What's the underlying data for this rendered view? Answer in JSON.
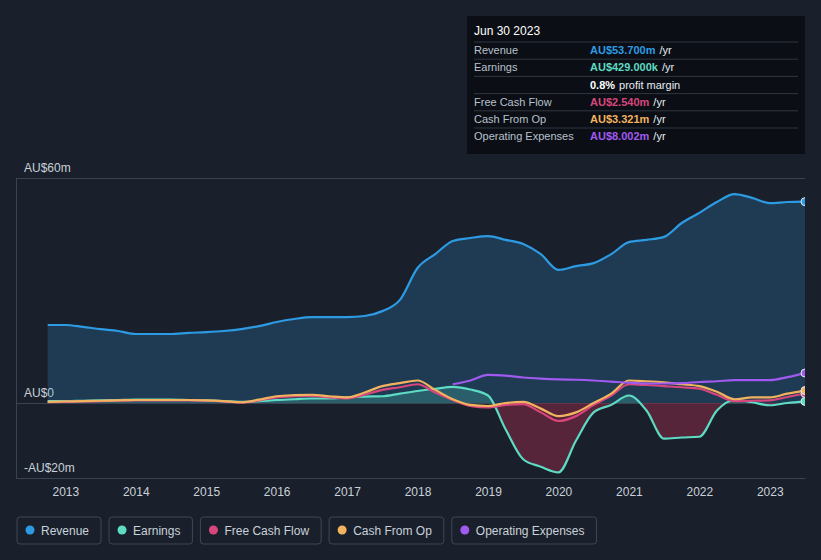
{
  "chart_data": {
    "type": "line",
    "x": [
      2012.75,
      2013.0,
      2013.25,
      2013.5,
      2013.75,
      2014.0,
      2014.25,
      2014.5,
      2014.75,
      2015.0,
      2015.25,
      2015.5,
      2015.75,
      2016.0,
      2016.25,
      2016.5,
      2016.75,
      2017.0,
      2017.25,
      2017.5,
      2017.75,
      2018.0,
      2018.25,
      2018.5,
      2018.75,
      2019.0,
      2019.25,
      2019.5,
      2019.75,
      2020.0,
      2020.25,
      2020.5,
      2020.75,
      2021.0,
      2021.25,
      2021.5,
      2021.75,
      2022.0,
      2022.25,
      2022.5,
      2022.75,
      2023.0,
      2023.25,
      2023.5
    ],
    "series": [
      {
        "name": "Revenue",
        "color": "#2d9be3",
        "type": "area",
        "values": [
          20.8,
          20.8,
          20.3,
          19.7,
          19.2,
          18.4,
          18.4,
          18.4,
          18.7,
          18.9,
          19.2,
          19.7,
          20.5,
          21.6,
          22.4,
          22.9,
          22.9,
          22.9,
          23.2,
          24.5,
          27.5,
          36.0,
          39.7,
          43.2,
          44.0,
          44.5,
          43.5,
          42.4,
          39.7,
          35.5,
          36.5,
          37.3,
          39.7,
          42.9,
          43.5,
          44.3,
          48.0,
          50.7,
          53.6,
          55.7,
          54.7,
          53.3,
          53.6,
          53.7
        ]
      },
      {
        "name": "Earnings",
        "color": "#5ddbc3",
        "type": "area",
        "values": [
          0.5,
          0.5,
          0.6,
          0.7,
          0.8,
          0.9,
          0.9,
          0.9,
          0.8,
          0.7,
          0.5,
          0.3,
          0.5,
          0.8,
          1.0,
          1.2,
          1.2,
          1.5,
          1.7,
          1.8,
          2.5,
          3.2,
          3.8,
          4.3,
          3.6,
          2.0,
          -7.0,
          -15.0,
          -17.0,
          -18.5,
          -10.0,
          -2.5,
          -0.5,
          2.0,
          -2.0,
          -9.5,
          -9.2,
          -9.0,
          -2.0,
          0.8,
          0.2,
          -0.6,
          0.0,
          0.429
        ]
      },
      {
        "name": "Free Cash Flow",
        "color": "#d9467e",
        "type": "line",
        "values": [
          0.2,
          0.3,
          0.4,
          0.5,
          0.6,
          0.7,
          0.7,
          0.7,
          0.7,
          0.6,
          0.4,
          0.1,
          0.7,
          1.5,
          1.8,
          1.9,
          1.5,
          1.2,
          2.2,
          3.5,
          4.2,
          5.0,
          2.8,
          0.8,
          -0.8,
          -1.2,
          -0.5,
          -0.3,
          -2.5,
          -4.8,
          -3.5,
          -0.5,
          2.0,
          5.0,
          4.8,
          4.5,
          4.2,
          3.8,
          2.2,
          0.5,
          0.6,
          0.7,
          1.6,
          2.54
        ]
      },
      {
        "name": "Cash From Op",
        "color": "#f2b35f",
        "type": "line",
        "values": [
          0.3,
          0.4,
          0.5,
          0.6,
          0.7,
          0.8,
          0.8,
          0.8,
          0.8,
          0.7,
          0.5,
          0.2,
          0.9,
          1.8,
          2.1,
          2.2,
          1.8,
          1.5,
          2.8,
          4.5,
          5.3,
          6.0,
          3.5,
          1.0,
          -0.5,
          -0.8,
          0.0,
          0.3,
          -1.5,
          -3.5,
          -2.5,
          0.0,
          2.5,
          6.0,
          5.8,
          5.5,
          5.0,
          4.5,
          3.0,
          1.0,
          1.5,
          1.5,
          2.5,
          3.321
        ]
      },
      {
        "name": "Operating Expenses",
        "color": "#a05af0",
        "type": "line",
        "values": [
          null,
          null,
          null,
          null,
          null,
          null,
          null,
          null,
          null,
          null,
          null,
          null,
          null,
          null,
          null,
          null,
          null,
          null,
          null,
          null,
          null,
          null,
          null,
          5.0,
          6.0,
          7.5,
          7.3,
          6.8,
          6.5,
          6.3,
          6.2,
          6.0,
          5.7,
          5.4,
          5.2,
          5.2,
          5.3,
          5.6,
          5.8,
          6.1,
          6.1,
          6.1,
          6.9,
          8.002
        ]
      }
    ],
    "xlim": [
      2012.3,
      2023.5
    ],
    "xticks": [
      2013,
      2014,
      2015,
      2016,
      2017,
      2018,
      2019,
      2020,
      2021,
      2022,
      2023
    ],
    "ylim": [
      -20,
      60
    ],
    "yticks": [
      {
        "value": -20,
        "label": "-AU$20m"
      },
      {
        "value": 0,
        "label": "AU$0"
      },
      {
        "value": 60,
        "label": "AU$60m"
      }
    ],
    "grid": true,
    "legend": "bottom-left",
    "annotations": {
      "title": "Jun 30 2023",
      "rows": [
        {
          "label": "Revenue",
          "value": "AU$53.700m",
          "unit": "/yr"
        },
        {
          "label": "Earnings",
          "value": "AU$429.000k",
          "unit": "/yr"
        },
        {
          "value": "0.8%",
          "unit": "profit margin"
        },
        {
          "label": "Free Cash Flow",
          "value": "AU$2.540m",
          "unit": "/yr"
        },
        {
          "label": "Cash From Op",
          "value": "AU$3.321m",
          "unit": "/yr"
        },
        {
          "label": "Operating Expenses",
          "value": "AU$8.002m",
          "unit": "/yr"
        }
      ]
    }
  }
}
